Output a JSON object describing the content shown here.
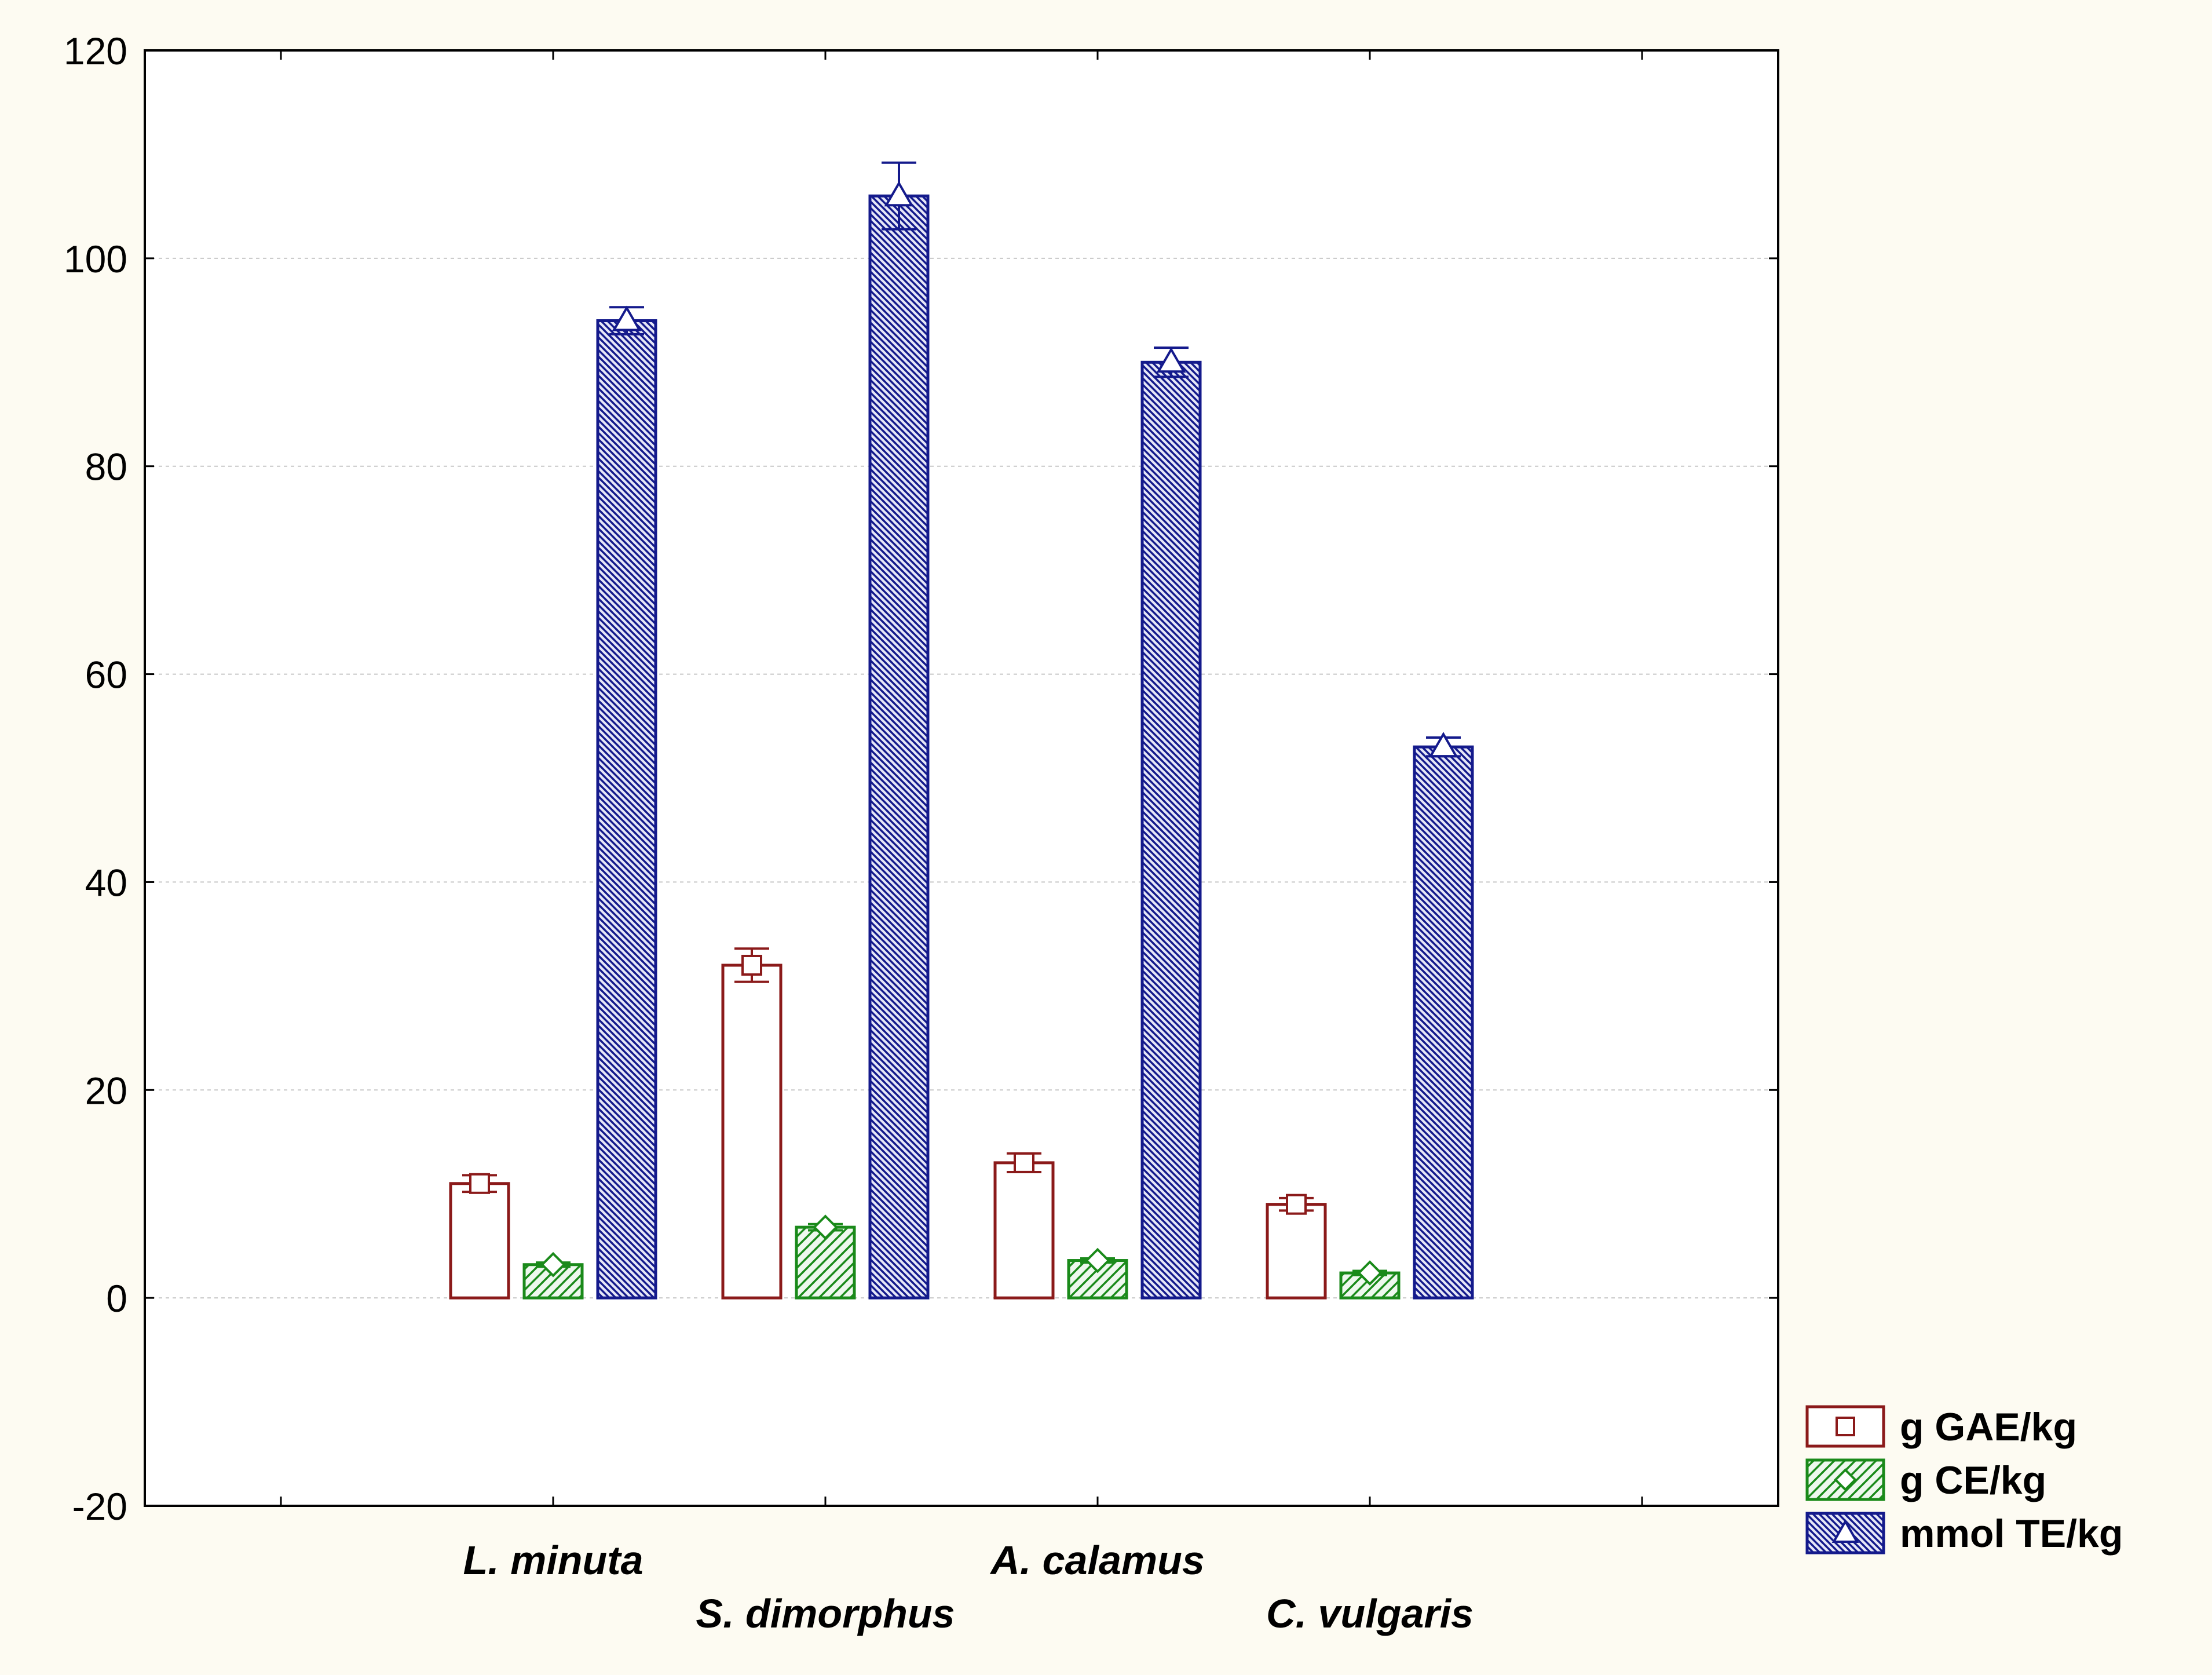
{
  "chart_data": {
    "type": "bar",
    "title": "",
    "xlabel": "",
    "ylabel": "",
    "categories": [
      "L. minuta",
      "S. dimorphus",
      "A. calamus",
      "C. vulgaris"
    ],
    "ylim": [
      -20,
      120
    ],
    "yticks": [
      -20,
      0,
      20,
      40,
      60,
      80,
      100,
      120
    ],
    "grid": true,
    "legend_position": "bottom-right, outside plot",
    "series": [
      {
        "name": "g GAE/kg",
        "marker": "square",
        "color": "#8b1a1a",
        "fill": "#ffffff",
        "values": [
          11,
          32,
          13,
          9
        ],
        "errors": [
          0.8,
          1.6,
          0.9,
          0.6
        ]
      },
      {
        "name": "g CE/kg",
        "marker": "diamond",
        "color": "#1a8a1a",
        "fill": "#9ad49a",
        "values": [
          3.2,
          6.8,
          3.6,
          2.4
        ],
        "errors": [
          0.2,
          0.3,
          0.2,
          0.2
        ]
      },
      {
        "name": "mmol TE/kg",
        "marker": "triangle",
        "color": "#141a8c",
        "fill": "#8e92d6",
        "values": [
          94,
          106,
          90,
          53
        ],
        "errors": [
          1.3,
          3.2,
          1.4,
          0.9
        ]
      }
    ]
  }
}
